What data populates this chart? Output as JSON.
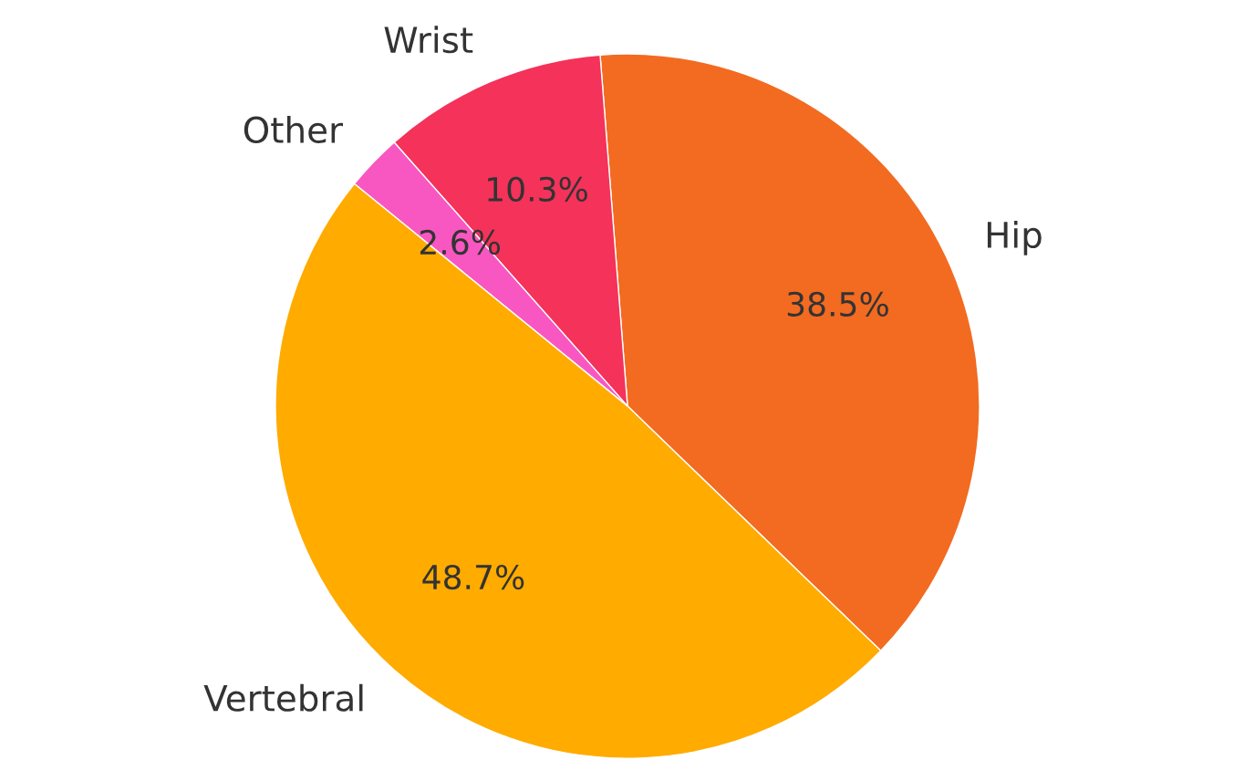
{
  "chart_data": {
    "type": "pie",
    "categories": [
      "Hip",
      "Wrist",
      "Other",
      "Vertebral"
    ],
    "values": [
      38.5,
      10.3,
      2.6,
      48.7
    ],
    "colors": [
      "#f26b21",
      "#f4325a",
      "#f857c1",
      "#ffab00"
    ],
    "value_labels": [
      "38.5%",
      "10.3%",
      "2.6%",
      "48.7%"
    ],
    "legend": false
  }
}
